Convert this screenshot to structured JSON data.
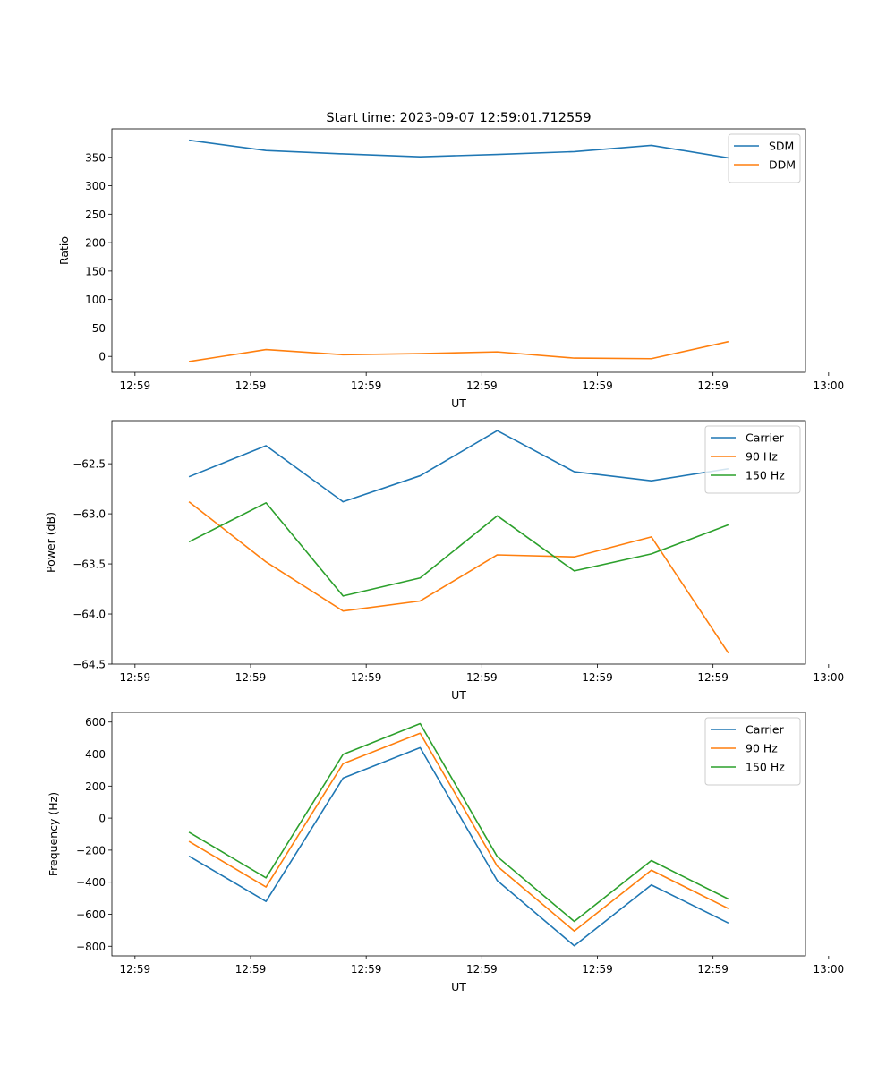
{
  "figure": {
    "title": "Start time: 2023-09-07 12:59:01.712559"
  },
  "chart_data": [
    {
      "type": "line",
      "title": "Start time: 2023-09-07 12:59:01.712559",
      "xlabel": "UT",
      "ylabel": "Ratio",
      "xlim": [
        -0.5,
        8.5
      ],
      "ylim": [
        -28,
        400
      ],
      "x_tick_positions": [
        -0.2,
        1.3,
        2.8,
        4.3,
        5.8,
        7.3,
        8.8
      ],
      "x_tick_labels": [
        "12:59",
        "12:59",
        "12:59",
        "12:59",
        "12:59",
        "12:59",
        "13:00"
      ],
      "y_ticks": [
        0,
        50,
        100,
        150,
        200,
        250,
        300,
        350
      ],
      "legend": "top-right",
      "x": [
        0.5,
        1.5,
        2.5,
        3.5,
        4.5,
        5.5,
        6.5,
        7.5
      ],
      "series": [
        {
          "name": "SDM",
          "color": "#1f77b4",
          "values": [
            380,
            362,
            356,
            351,
            355,
            360,
            371,
            349
          ]
        },
        {
          "name": "DDM",
          "color": "#ff7f0e",
          "values": [
            -9,
            12,
            3,
            5,
            8,
            -3,
            -4,
            26
          ]
        }
      ]
    },
    {
      "type": "line",
      "title": "",
      "xlabel": "UT",
      "ylabel": "Power (dB)",
      "xlim": [
        -0.5,
        8.5
      ],
      "ylim": [
        -64.5,
        -62.07
      ],
      "x_tick_positions": [
        -0.2,
        1.3,
        2.8,
        4.3,
        5.8,
        7.3,
        8.8
      ],
      "x_tick_labels": [
        "12:59",
        "12:59",
        "12:59",
        "12:59",
        "12:59",
        "12:59",
        "13:00"
      ],
      "y_ticks": [
        -64.5,
        -64.0,
        -63.5,
        -63.0,
        -62.5
      ],
      "y_tick_labels": [
        "−64.5",
        "−64.0",
        "−63.5",
        "−63.0",
        "−62.5"
      ],
      "legend": "top-right",
      "x": [
        0.5,
        1.5,
        2.5,
        3.5,
        4.5,
        5.5,
        6.5,
        7.5
      ],
      "series": [
        {
          "name": "Carrier",
          "color": "#1f77b4",
          "values": [
            -62.63,
            -62.32,
            -62.88,
            -62.62,
            -62.17,
            -62.58,
            -62.67,
            -62.55
          ]
        },
        {
          "name": "90 Hz",
          "color": "#ff7f0e",
          "values": [
            -62.88,
            -63.48,
            -63.97,
            -63.87,
            -63.41,
            -63.43,
            -63.23,
            -64.39
          ]
        },
        {
          "name": "150 Hz",
          "color": "#2ca02c",
          "values": [
            -63.28,
            -62.89,
            -63.82,
            -63.64,
            -63.02,
            -63.57,
            -63.4,
            -63.11
          ]
        }
      ]
    },
    {
      "type": "line",
      "title": "",
      "xlabel": "UT",
      "ylabel": "Frequency (Hz)",
      "xlim": [
        -0.5,
        8.5
      ],
      "ylim": [
        -860,
        660
      ],
      "x_tick_positions": [
        -0.2,
        1.3,
        2.8,
        4.3,
        5.8,
        7.3,
        8.8
      ],
      "x_tick_labels": [
        "12:59",
        "12:59",
        "12:59",
        "12:59",
        "12:59",
        "12:59",
        "13:00"
      ],
      "y_ticks": [
        -800,
        -600,
        -400,
        -200,
        0,
        200,
        400,
        600
      ],
      "y_tick_labels": [
        "−800",
        "−600",
        "−400",
        "−200",
        "0",
        "200",
        "400",
        "600"
      ],
      "legend": "top-right",
      "x": [
        0.5,
        1.5,
        2.5,
        3.5,
        4.5,
        5.5,
        6.5,
        7.5
      ],
      "series": [
        {
          "name": "Carrier",
          "color": "#1f77b4",
          "values": [
            -237,
            -520,
            250,
            440,
            -390,
            -797,
            -417,
            -655
          ]
        },
        {
          "name": "90 Hz",
          "color": "#ff7f0e",
          "values": [
            -145,
            -430,
            340,
            530,
            -300,
            -705,
            -325,
            -565
          ]
        },
        {
          "name": "150 Hz",
          "color": "#2ca02c",
          "values": [
            -88,
            -373,
            398,
            590,
            -240,
            -645,
            -265,
            -505
          ]
        }
      ]
    }
  ]
}
